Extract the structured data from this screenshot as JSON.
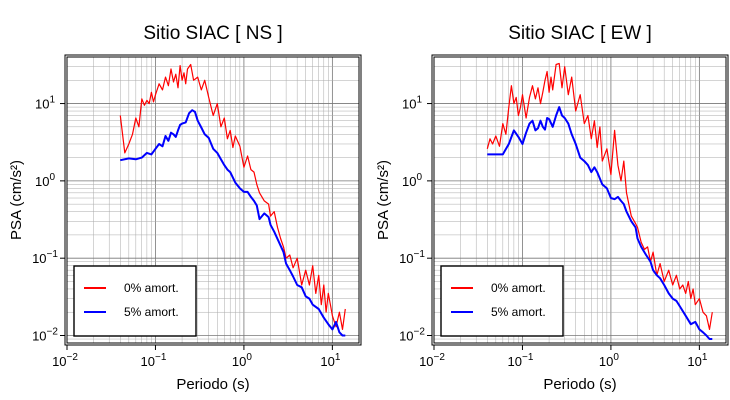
{
  "chart_data": [
    {
      "type": "line",
      "title": "Sitio SIAC [ NS ]",
      "xlabel": "Periodo (s)",
      "ylabel": "PSA (cm/s²)",
      "xscale": "log",
      "yscale": "log",
      "xlim": [
        0.01,
        20
      ],
      "ylim": [
        0.008,
        40
      ],
      "grid": true,
      "legend_position": "bottom-left",
      "series": [
        {
          "name": "0% amort.",
          "color": "#ff0000",
          "x": [
            0.04,
            0.045,
            0.05,
            0.055,
            0.06,
            0.065,
            0.07,
            0.075,
            0.08,
            0.085,
            0.09,
            0.095,
            0.1,
            0.11,
            0.12,
            0.13,
            0.14,
            0.15,
            0.16,
            0.17,
            0.18,
            0.19,
            0.2,
            0.21,
            0.22,
            0.23,
            0.25,
            0.27,
            0.3,
            0.33,
            0.36,
            0.4,
            0.45,
            0.5,
            0.55,
            0.6,
            0.65,
            0.7,
            0.75,
            0.8,
            0.9,
            1.0,
            1.1,
            1.2,
            1.3,
            1.4,
            1.5,
            1.7,
            1.9,
            2.0,
            2.2,
            2.4,
            2.6,
            2.8,
            3.0,
            3.3,
            3.6,
            4.0,
            4.5,
            5.0,
            5.5,
            6.0,
            6.5,
            7.0,
            7.5,
            8.0,
            8.5,
            9.0,
            9.5,
            10.0,
            11.0,
            12.0,
            13.0,
            14.0
          ],
          "y": [
            7.0,
            2.3,
            3.0,
            4.0,
            6.5,
            5.0,
            11.5,
            9.5,
            11.0,
            10.0,
            14.0,
            10.5,
            13.0,
            18.0,
            15.0,
            22.0,
            17.0,
            28.0,
            19.0,
            24.0,
            16.0,
            31.0,
            20.0,
            25.0,
            18.0,
            28.0,
            32.0,
            20.0,
            22.0,
            15.0,
            20.0,
            12.0,
            7.0,
            10.0,
            5.0,
            6.5,
            3.5,
            4.5,
            2.7,
            3.8,
            2.8,
            1.5,
            2.1,
            1.4,
            1.3,
            0.9,
            0.7,
            0.55,
            0.5,
            0.35,
            0.4,
            0.25,
            0.18,
            0.14,
            0.1,
            0.11,
            0.075,
            0.1,
            0.045,
            0.07,
            0.045,
            0.08,
            0.035,
            0.06,
            0.025,
            0.045,
            0.02,
            0.035,
            0.025,
            0.018,
            0.013,
            0.02,
            0.012,
            0.022
          ]
        },
        {
          "name": "5% amort.",
          "color": "#0000ff",
          "x": [
            0.04,
            0.05,
            0.06,
            0.07,
            0.08,
            0.09,
            0.1,
            0.11,
            0.12,
            0.13,
            0.14,
            0.15,
            0.16,
            0.17,
            0.18,
            0.19,
            0.2,
            0.22,
            0.24,
            0.26,
            0.28,
            0.3,
            0.33,
            0.36,
            0.4,
            0.45,
            0.5,
            0.55,
            0.6,
            0.65,
            0.7,
            0.8,
            0.9,
            1.0,
            1.1,
            1.2,
            1.3,
            1.4,
            1.5,
            1.7,
            1.9,
            2.0,
            2.2,
            2.5,
            2.8,
            3.0,
            3.3,
            3.6,
            4.0,
            4.5,
            5.0,
            5.5,
            6.0,
            7.0,
            8.0,
            9.0,
            10.0,
            11.0,
            12.0,
            13.0,
            14.0
          ],
          "y": [
            1.85,
            1.95,
            1.9,
            2.0,
            2.3,
            2.2,
            2.6,
            3.0,
            2.8,
            3.8,
            3.3,
            4.2,
            4.0,
            3.7,
            4.5,
            5.3,
            5.5,
            5.7,
            7.5,
            8.2,
            7.8,
            6.0,
            4.9,
            4.0,
            3.6,
            2.6,
            2.3,
            1.9,
            1.6,
            1.4,
            1.3,
            0.95,
            0.8,
            0.72,
            0.72,
            0.62,
            0.55,
            0.48,
            0.32,
            0.38,
            0.34,
            0.27,
            0.22,
            0.16,
            0.12,
            0.085,
            0.07,
            0.058,
            0.045,
            0.042,
            0.032,
            0.03,
            0.025,
            0.022,
            0.017,
            0.014,
            0.012,
            0.015,
            0.011,
            0.01,
            0.01
          ]
        }
      ]
    },
    {
      "type": "line",
      "title": "Sitio SIAC [ EW ]",
      "xlabel": "Periodo (s)",
      "ylabel": "PSA (cm/s²)",
      "xscale": "log",
      "yscale": "log",
      "xlim": [
        0.01,
        20
      ],
      "ylim": [
        0.008,
        40
      ],
      "grid": true,
      "legend_position": "bottom-left",
      "series": [
        {
          "name": "0% amort.",
          "color": "#ff0000",
          "x": [
            0.04,
            0.043,
            0.046,
            0.05,
            0.055,
            0.06,
            0.065,
            0.07,
            0.075,
            0.08,
            0.085,
            0.09,
            0.095,
            0.1,
            0.11,
            0.12,
            0.13,
            0.14,
            0.15,
            0.16,
            0.17,
            0.18,
            0.19,
            0.2,
            0.21,
            0.22,
            0.24,
            0.26,
            0.28,
            0.3,
            0.33,
            0.36,
            0.4,
            0.45,
            0.5,
            0.55,
            0.6,
            0.65,
            0.7,
            0.75,
            0.8,
            0.9,
            1.0,
            1.1,
            1.2,
            1.3,
            1.4,
            1.5,
            1.7,
            1.9,
            2.0,
            2.2,
            2.4,
            2.6,
            2.8,
            3.0,
            3.3,
            3.6,
            4.0,
            4.5,
            5.0,
            5.5,
            6.0,
            6.5,
            7.0,
            7.5,
            8.0,
            8.5,
            9.0,
            10.0,
            11.0,
            12.0,
            13.0,
            14.0
          ],
          "y": [
            2.6,
            3.5,
            3.0,
            3.8,
            2.8,
            5.5,
            4.0,
            9.0,
            17.0,
            10.0,
            12.0,
            7.0,
            9.0,
            13.0,
            6.5,
            12.0,
            17.0,
            11.5,
            16.0,
            10.0,
            14.0,
            20.0,
            26.0,
            14.0,
            22.0,
            15.0,
            32.0,
            33.0,
            16.0,
            30.0,
            13.0,
            22.0,
            8.0,
            13.0,
            5.5,
            7.0,
            3.5,
            6.0,
            2.7,
            5.0,
            1.8,
            2.6,
            1.2,
            4.5,
            1.6,
            1.0,
            1.8,
            0.7,
            0.35,
            0.28,
            0.25,
            0.16,
            0.13,
            0.14,
            0.09,
            0.12,
            0.06,
            0.085,
            0.05,
            0.07,
            0.045,
            0.06,
            0.04,
            0.045,
            0.035,
            0.05,
            0.03,
            0.04,
            0.025,
            0.03,
            0.02,
            0.018,
            0.012,
            0.02
          ]
        },
        {
          "name": "5% amort.",
          "color": "#0000ff",
          "x": [
            0.04,
            0.05,
            0.06,
            0.07,
            0.08,
            0.09,
            0.1,
            0.11,
            0.12,
            0.13,
            0.14,
            0.15,
            0.16,
            0.17,
            0.18,
            0.19,
            0.2,
            0.22,
            0.24,
            0.26,
            0.28,
            0.3,
            0.33,
            0.36,
            0.4,
            0.45,
            0.5,
            0.55,
            0.6,
            0.65,
            0.7,
            0.8,
            0.9,
            1.0,
            1.1,
            1.2,
            1.3,
            1.4,
            1.5,
            1.7,
            1.9,
            2.0,
            2.2,
            2.5,
            2.8,
            3.0,
            3.3,
            3.6,
            4.0,
            4.5,
            5.0,
            5.5,
            6.0,
            7.0,
            8.0,
            9.0,
            10.0,
            11.0,
            12.0,
            13.0,
            14.0
          ],
          "y": [
            2.2,
            2.2,
            2.2,
            3.0,
            4.5,
            3.7,
            3.0,
            4.2,
            5.5,
            6.0,
            4.5,
            4.8,
            6.0,
            5.0,
            4.6,
            6.5,
            6.3,
            5.0,
            7.0,
            9.0,
            7.0,
            6.5,
            5.5,
            4.0,
            3.0,
            2.0,
            1.8,
            1.6,
            1.3,
            1.5,
            1.3,
            0.9,
            0.8,
            0.6,
            0.58,
            0.62,
            0.55,
            0.5,
            0.4,
            0.3,
            0.25,
            0.18,
            0.14,
            0.11,
            0.09,
            0.07,
            0.06,
            0.055,
            0.045,
            0.035,
            0.03,
            0.028,
            0.024,
            0.018,
            0.014,
            0.015,
            0.012,
            0.011,
            0.01,
            0.009,
            0.009
          ]
        }
      ]
    }
  ]
}
